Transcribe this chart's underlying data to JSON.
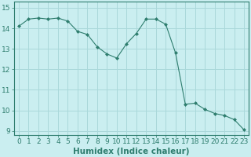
{
  "x": [
    0,
    1,
    2,
    3,
    4,
    5,
    6,
    7,
    8,
    9,
    10,
    11,
    12,
    13,
    14,
    15,
    16,
    17,
    18,
    19,
    20,
    21,
    22,
    23
  ],
  "y": [
    14.1,
    14.45,
    14.5,
    14.45,
    14.5,
    14.35,
    13.85,
    13.7,
    13.1,
    12.75,
    12.55,
    13.25,
    13.75,
    14.45,
    14.45,
    14.2,
    12.8,
    10.3,
    10.35,
    10.05,
    9.85,
    9.75,
    9.55,
    9.05
  ],
  "line_color": "#2e7d6e",
  "marker": "D",
  "marker_size": 2.0,
  "bg_color": "#caeef0",
  "grid_color": "#aad8da",
  "xlabel": "Humidex (Indice chaleur)",
  "ylim": [
    8.8,
    15.3
  ],
  "xlim": [
    -0.5,
    23.5
  ],
  "yticks": [
    9,
    10,
    11,
    12,
    13,
    14,
    15
  ],
  "xticks": [
    0,
    1,
    2,
    3,
    4,
    5,
    6,
    7,
    8,
    9,
    10,
    11,
    12,
    13,
    14,
    15,
    16,
    17,
    18,
    19,
    20,
    21,
    22,
    23
  ],
  "xlabel_fontsize": 7.5,
  "tick_fontsize": 6.5
}
